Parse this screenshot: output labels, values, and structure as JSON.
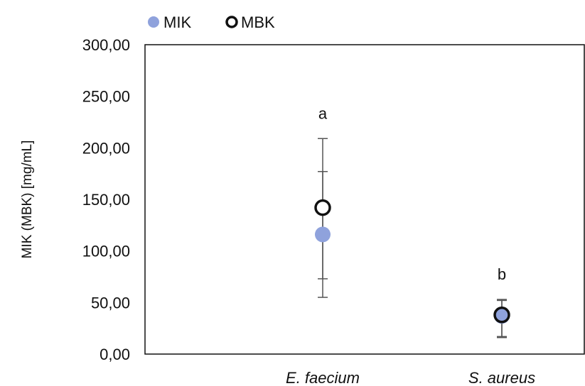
{
  "chart_data": {
    "type": "scatter",
    "categories": [
      "E. faecium",
      "S. aureus"
    ],
    "series": [
      {
        "name": "MIK",
        "color": "#8FA2DC",
        "marker": "filled-circle",
        "values": [
          116.0,
          37.0
        ],
        "error_low": [
          55.0,
          17.0
        ],
        "error_high": [
          177.0,
          52.0
        ]
      },
      {
        "name": "MBK",
        "color": "#111111",
        "marker": "open-circle",
        "values": [
          142.0,
          38.0
        ],
        "error_low": [
          73.0,
          16.0
        ],
        "error_high": [
          209.0,
          53.0
        ]
      }
    ],
    "annotations": [
      "a",
      "b"
    ],
    "ylabel": "MIK (MBK) [mg/mL]",
    "ylim": [
      0,
      300
    ],
    "yticks": [
      "0,00",
      "50,00",
      "100,00",
      "150,00",
      "200,00",
      "250,00",
      "300,00"
    ],
    "ytick_values": [
      0,
      50,
      100,
      150,
      200,
      250,
      300
    ],
    "grid": false,
    "legend_position": "top-left"
  }
}
